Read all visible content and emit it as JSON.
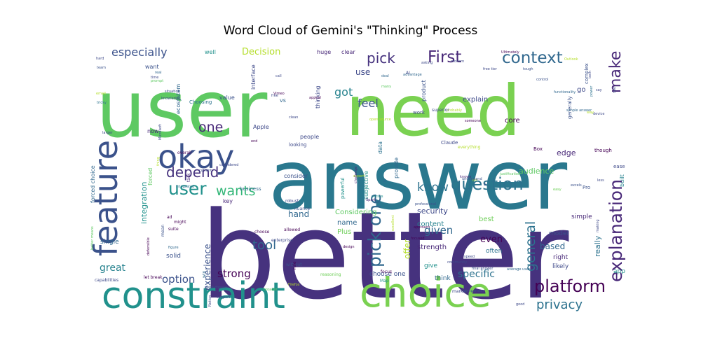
{
  "chart_data": {
    "type": "wordcloud",
    "title": "Word Cloud of Gemini's \"Thinking\" Process",
    "palette": [
      "#440154",
      "#482878",
      "#3e4989",
      "#31688e",
      "#26828e",
      "#1f9e89",
      "#35b779",
      "#6ece58",
      "#b5de2b",
      "#fde725"
    ],
    "words": [
      {
        "text": "better",
        "weight": 1.0,
        "color": "#46327e"
      },
      {
        "text": "answer",
        "weight": 0.9,
        "color": "#2a788e"
      },
      {
        "text": "user",
        "weight": 0.8,
        "color": "#5ec962"
      },
      {
        "text": "need",
        "weight": 0.8,
        "color": "#7ad151"
      },
      {
        "text": "choice",
        "weight": 0.56,
        "color": "#7ad151"
      },
      {
        "text": "constraint",
        "weight": 0.5,
        "color": "#21918c"
      },
      {
        "text": "feature",
        "weight": 0.5,
        "color": "#3b528b"
      },
      {
        "text": "okay",
        "weight": 0.44,
        "color": "#3b528b"
      },
      {
        "text": "user",
        "weight": 0.25,
        "color": "#21918c"
      },
      {
        "text": "pick one",
        "weight": 0.25,
        "color": "#31688e"
      },
      {
        "text": "explanation",
        "weight": 0.25,
        "color": "#482878"
      },
      {
        "text": "question",
        "weight": 0.24,
        "color": "#2c728e"
      },
      {
        "text": "platform",
        "weight": 0.24,
        "color": "#440154"
      },
      {
        "text": "context",
        "weight": 0.23,
        "color": "#31688e"
      },
      {
        "text": "First",
        "weight": 0.23,
        "color": "#482878"
      },
      {
        "text": "make",
        "weight": 0.22,
        "color": "#482878"
      },
      {
        "text": "depend",
        "weight": 0.2,
        "color": "#46327e"
      },
      {
        "text": "pick",
        "weight": 0.2,
        "color": "#46327e"
      },
      {
        "text": "wants",
        "weight": 0.19,
        "color": "#35b779"
      },
      {
        "text": "one",
        "weight": 0.19,
        "color": "#482878"
      },
      {
        "text": "general",
        "weight": 0.19,
        "color": "#2c728e"
      },
      {
        "text": "privacy",
        "weight": 0.18,
        "color": "#2c728e"
      },
      {
        "text": "tool",
        "weight": 0.18,
        "color": "#31688e"
      },
      {
        "text": "know",
        "weight": 0.17,
        "color": "#2c728e"
      },
      {
        "text": "especially",
        "weight": 0.16,
        "color": "#3b528b"
      },
      {
        "text": "got",
        "weight": 0.16,
        "color": "#26828e"
      },
      {
        "text": "feel",
        "weight": 0.16,
        "color": "#3b528b"
      },
      {
        "text": "given",
        "weight": 0.15,
        "color": "#31688e"
      },
      {
        "text": "strong",
        "weight": 0.15,
        "color": "#440154"
      },
      {
        "text": "option",
        "weight": 0.15,
        "color": "#3b528b"
      },
      {
        "text": "great",
        "weight": 0.14,
        "color": "#26828e"
      },
      {
        "text": "specific",
        "weight": 0.14,
        "color": "#2c728e"
      },
      {
        "text": "Decision",
        "weight": 0.13,
        "color": "#b5de2b"
      },
      {
        "text": "even",
        "weight": 0.13,
        "color": "#440154"
      },
      {
        "text": "use",
        "weight": 0.12,
        "color": "#3e4989"
      },
      {
        "text": "hand",
        "weight": 0.12,
        "color": "#31688e"
      },
      {
        "text": "based",
        "weight": 0.12,
        "color": "#31688e"
      },
      {
        "text": "experience",
        "weight": 0.12,
        "color": "#3b528b"
      },
      {
        "text": "offer",
        "weight": 0.11,
        "color": "#b5de2b"
      },
      {
        "text": "security",
        "weight": 0.11,
        "color": "#3e4989"
      },
      {
        "text": "integration",
        "weight": 0.11,
        "color": "#21918c"
      },
      {
        "text": "really",
        "weight": 0.11,
        "color": "#2c728e"
      },
      {
        "text": "edge",
        "weight": 0.11,
        "color": "#482878"
      },
      {
        "text": "audience",
        "weight": 0.11,
        "color": "#5ec962"
      },
      {
        "text": "explain",
        "weight": 0.1,
        "color": "#3e4989"
      },
      {
        "text": "core",
        "weight": 0.1,
        "color": "#440154"
      },
      {
        "text": "go",
        "weight": 0.1,
        "color": "#3e4989"
      },
      {
        "text": "Considering",
        "weight": 0.1,
        "color": "#5ec962"
      },
      {
        "text": "content",
        "weight": 0.1,
        "color": "#26828e"
      },
      {
        "text": "strength",
        "weight": 0.1,
        "color": "#482878"
      },
      {
        "text": "Plus",
        "weight": 0.1,
        "color": "#6ece58"
      },
      {
        "text": "name",
        "weight": 0.1,
        "color": "#31688e"
      },
      {
        "text": "best",
        "weight": 0.1,
        "color": "#6ece58"
      },
      {
        "text": "model",
        "weight": 0.09,
        "color": "#3b528b"
      },
      {
        "text": "simple",
        "weight": 0.09,
        "color": "#482878"
      },
      {
        "text": "right",
        "weight": 0.09,
        "color": "#482878"
      },
      {
        "text": "likely",
        "weight": 0.09,
        "color": "#3e4989"
      },
      {
        "text": "app",
        "weight": 0.09,
        "color": "#21918c"
      },
      {
        "text": "often",
        "weight": 0.09,
        "color": "#2c728e"
      },
      {
        "text": "think",
        "weight": 0.09,
        "color": "#31688e"
      },
      {
        "text": "give",
        "weight": 0.09,
        "color": "#21918c"
      },
      {
        "text": "choose one",
        "weight": 0.09,
        "color": "#3b528b"
      },
      {
        "text": "solid",
        "weight": 0.09,
        "color": "#3b528b"
      },
      {
        "text": "single",
        "weight": 0.09,
        "color": "#31688e"
      },
      {
        "text": "consider",
        "weight": 0.08,
        "color": "#3b528b"
      },
      {
        "text": "Apple",
        "weight": 0.08,
        "color": "#3e4989"
      },
      {
        "text": "thinking",
        "weight": 0.08,
        "color": "#3e4989"
      },
      {
        "text": "huge",
        "weight": 0.08,
        "color": "#482878"
      },
      {
        "text": "clear",
        "weight": 0.08,
        "color": "#482878"
      },
      {
        "text": "well",
        "weight": 0.08,
        "color": "#21918c"
      },
      {
        "text": "value",
        "weight": 0.07,
        "color": "#3b528b"
      },
      {
        "text": "people",
        "weight": 0.07,
        "color": "#3e4989"
      },
      {
        "text": "want",
        "weight": 0.07,
        "color": "#3b528b"
      },
      {
        "text": "forced",
        "weight": 0.07,
        "color": "#5ec962"
      },
      {
        "text": "now",
        "weight": 0.07,
        "color": "#482878"
      },
      {
        "text": "vs",
        "weight": 0.07,
        "color": "#31688e"
      },
      {
        "text": "built",
        "weight": 0.07,
        "color": "#26828e"
      },
      {
        "text": "key",
        "weight": 0.07,
        "color": "#482878"
      },
      {
        "text": "product",
        "weight": 0.07,
        "color": "#3b528b"
      },
      {
        "text": "ecosystem",
        "weight": 0.07,
        "color": "#31688e"
      },
      {
        "text": "interface",
        "weight": 0.07,
        "color": "#3e4989"
      },
      {
        "text": "forced choice",
        "weight": 0.07,
        "color": "#31688e"
      },
      {
        "text": "subjective",
        "weight": 0.07,
        "color": "#21918c"
      },
      {
        "text": "provide",
        "weight": 0.07,
        "color": "#31688e"
      },
      {
        "text": "data",
        "weight": 0.07,
        "color": "#2c728e"
      },
      {
        "text": "work",
        "weight": 0.06,
        "color": "#3e4989"
      },
      {
        "text": "powerful",
        "weight": 0.06,
        "color": "#21918c"
      },
      {
        "text": "quick",
        "weight": 0.06,
        "color": "#2c728e"
      },
      {
        "text": "looking",
        "weight": 0.06,
        "color": "#3e4989"
      },
      {
        "text": "business",
        "weight": 0.06,
        "color": "#31688e"
      },
      {
        "text": "Choosing",
        "weight": 0.06,
        "color": "#2c728e"
      },
      {
        "text": "complex",
        "weight": 0.06,
        "color": "#3b528b"
      },
      {
        "text": "generally",
        "weight": 0.06,
        "color": "#3b528b"
      },
      {
        "text": "though",
        "weight": 0.06,
        "color": "#440154"
      },
      {
        "text": "ease",
        "weight": 0.06,
        "color": "#3e4989"
      },
      {
        "text": "Pro",
        "weight": 0.06,
        "color": "#3b528b"
      },
      {
        "text": "Box",
        "weight": 0.06,
        "color": "#440154"
      },
      {
        "text": "Claude",
        "weight": 0.06,
        "color": "#3e4989"
      },
      {
        "text": "focus",
        "weight": 0.06,
        "color": "#440154"
      },
      {
        "text": "market",
        "weight": 0.06,
        "color": "#3e4989"
      },
      {
        "text": "reasoning",
        "weight": 0.06,
        "color": "#6ece58"
      },
      {
        "text": "let break",
        "weight": 0.06,
        "color": "#440154"
      },
      {
        "text": "capabilities",
        "weight": 0.05,
        "color": "#3e4989"
      },
      {
        "text": "win",
        "weight": 0.05,
        "color": "#31688e"
      },
      {
        "text": "without",
        "weight": 0.05,
        "color": "#3b528b"
      },
      {
        "text": "rule",
        "weight": 0.05,
        "color": "#440154"
      },
      {
        "text": "robust",
        "weight": 0.05,
        "color": "#3e4989"
      },
      {
        "text": "nuance",
        "weight": 0.05,
        "color": "#3b528b"
      },
      {
        "text": "allowed",
        "weight": 0.05,
        "color": "#440154"
      },
      {
        "text": "mean",
        "weight": 0.05,
        "color": "#3b528b"
      },
      {
        "text": "ad",
        "weight": 0.05,
        "color": "#440154"
      },
      {
        "text": "might",
        "weight": 0.05,
        "color": "#440154"
      },
      {
        "text": "choose",
        "weight": 0.05,
        "color": "#440154"
      },
      {
        "text": "enterprise",
        "weight": 0.05,
        "color": "#3e4989"
      },
      {
        "text": "suite",
        "weight": 0.05,
        "color": "#440154"
      },
      {
        "text": "overall",
        "weight": 0.05,
        "color": "#440154"
      },
      {
        "text": "task",
        "weight": 0.05,
        "color": "#482878"
      },
      {
        "text": "defensible",
        "weight": 0.05,
        "color": "#440154"
      },
      {
        "text": "better means",
        "weight": 0.05,
        "color": "#5ec962"
      },
      {
        "text": "integrated",
        "weight": 0.05,
        "color": "#2c728e"
      },
      {
        "text": "email",
        "weight": 0.05,
        "color": "#b5de2b"
      },
      {
        "text": "tricky",
        "weight": 0.05,
        "color": "#2c728e"
      },
      {
        "text": "hard",
        "weight": 0.05,
        "color": "#3e4989"
      },
      {
        "text": "team",
        "weight": 0.05,
        "color": "#3b528b"
      },
      {
        "text": "prompt",
        "weight": 0.05,
        "color": "#5ec962"
      },
      {
        "text": "time",
        "weight": 0.04,
        "color": "#3e4989"
      },
      {
        "text": "situation",
        "weight": 0.04,
        "color": "#3e4989"
      },
      {
        "text": "knowledge",
        "weight": 0.04,
        "color": "#3e4989"
      },
      {
        "text": "real",
        "weight": 0.04,
        "color": "#31688e"
      },
      {
        "text": "call",
        "weight": 0.04,
        "color": "#3e4989"
      },
      {
        "text": "Vimeo",
        "weight": 0.04,
        "color": "#440154"
      },
      {
        "text": "free",
        "weight": 0.04,
        "color": "#3e4989"
      },
      {
        "text": "many",
        "weight": 0.04,
        "color": "#5ec962"
      },
      {
        "text": "modern",
        "weight": 0.04,
        "color": "#3e4989"
      },
      {
        "text": "free tier",
        "weight": 0.04,
        "color": "#3e4989"
      },
      {
        "text": "Ultimately",
        "weight": 0.04,
        "color": "#440154"
      },
      {
        "text": "tough",
        "weight": 0.04,
        "color": "#3b528b"
      },
      {
        "text": "control",
        "weight": 0.04,
        "color": "#3b528b"
      },
      {
        "text": "functionality",
        "weight": 0.04,
        "color": "#31688e"
      },
      {
        "text": "deal",
        "weight": 0.04,
        "color": "#31688e"
      },
      {
        "text": "advantage",
        "weight": 0.04,
        "color": "#31688e"
      },
      {
        "text": "appeal",
        "weight": 0.04,
        "color": "#440154"
      },
      {
        "text": "clean",
        "weight": 0.04,
        "color": "#3e4989"
      },
      {
        "text": "end",
        "weight": 0.04,
        "color": "#440154"
      },
      {
        "text": "larger",
        "weight": 0.04,
        "color": "#3e4989"
      },
      {
        "text": "open source",
        "weight": 0.04,
        "color": "#b5de2b"
      },
      {
        "text": "someone",
        "weight": 0.04,
        "color": "#440154"
      },
      {
        "text": "simple answer",
        "weight": 0.04,
        "color": "#31688e"
      },
      {
        "text": "device",
        "weight": 0.04,
        "color": "#3e4989"
      },
      {
        "text": "power",
        "weight": 0.04,
        "color": "#2c728e"
      },
      {
        "text": "say",
        "weight": 0.04,
        "color": "#3e4989"
      },
      {
        "text": "two",
        "weight": 0.04,
        "color": "#3e4989"
      },
      {
        "text": "UI",
        "weight": 0.04,
        "color": "#31688e"
      },
      {
        "text": "expert",
        "weight": 0.04,
        "color": "#b5de2b"
      },
      {
        "text": "versus",
        "weight": 0.04,
        "color": "#21918c"
      },
      {
        "text": "Spark",
        "weight": 0.04,
        "color": "#482878"
      },
      {
        "text": "challenge",
        "weight": 0.04,
        "color": "#482878"
      },
      {
        "text": "known",
        "weight": 0.04,
        "color": "#482878"
      },
      {
        "text": "bit",
        "weight": 0.04,
        "color": "#b5de2b"
      },
      {
        "text": "easy",
        "weight": 0.04,
        "color": "#6ece58"
      },
      {
        "text": "less",
        "weight": 0.04,
        "color": "#3e4989"
      },
      {
        "text": "excels",
        "weight": 0.04,
        "color": "#3b528b"
      },
      {
        "text": "making",
        "weight": 0.04,
        "color": "#3e4989"
      },
      {
        "text": "justification",
        "weight": 0.04,
        "color": "#5ec962"
      },
      {
        "text": "understand",
        "weight": 0.04,
        "color": "#3b528b"
      },
      {
        "text": "professional",
        "weight": 0.04,
        "color": "#3b528b"
      },
      {
        "text": "focused",
        "weight": 0.04,
        "color": "#440154"
      },
      {
        "text": "approach",
        "weight": 0.04,
        "color": "#440154"
      },
      {
        "text": "design",
        "weight": 0.04,
        "color": "#440154"
      },
      {
        "text": "excellent",
        "weight": 0.04,
        "color": "#b5de2b"
      },
      {
        "text": "community",
        "weight": 0.04,
        "color": "#3e4989"
      },
      {
        "text": "final answer",
        "weight": 0.04,
        "color": "#3b528b"
      },
      {
        "text": "average user",
        "weight": 0.04,
        "color": "#31688e"
      },
      {
        "text": "comparison",
        "weight": 0.04,
        "color": "#3b528b"
      },
      {
        "text": "good",
        "weight": 0.04,
        "color": "#3e4989"
      },
      {
        "text": "speed",
        "weight": 0.04,
        "color": "#3e4989"
      },
      {
        "text": "must choose",
        "weight": 0.04,
        "color": "#3b528b"
      },
      {
        "text": "broader",
        "weight": 0.04,
        "color": "#5ec962"
      },
      {
        "text": "Firefox",
        "weight": 0.04,
        "color": "#b5de2b"
      },
      {
        "text": "Notion",
        "weight": 0.04,
        "color": "#3e4989"
      },
      {
        "text": "support",
        "weight": 0.04,
        "color": "#3e4989"
      },
      {
        "text": "current",
        "weight": 0.04,
        "color": "#3b528b"
      },
      {
        "text": "considered",
        "weight": 0.04,
        "color": "#3e4989"
      },
      {
        "text": "figure",
        "weight": 0.04,
        "color": "#31688e"
      },
      {
        "text": "thing",
        "weight": 0.04,
        "color": "#b5de2b"
      },
      {
        "text": "Microsoft",
        "weight": 0.04,
        "color": "#3e4989"
      },
      {
        "text": "Outlook",
        "weight": 0.04,
        "color": "#b5de2b"
      },
      {
        "text": "way",
        "weight": 0.04,
        "color": "#b5de2b"
      },
      {
        "text": "asking",
        "weight": 0.04,
        "color": "#3e4989"
      },
      {
        "text": "tech",
        "weight": 0.04,
        "color": "#3e4989"
      },
      {
        "text": "probably",
        "weight": 0.04,
        "color": "#b5de2b"
      },
      {
        "text": "Map",
        "weight": 0.04,
        "color": "#21918c"
      },
      {
        "text": "AI",
        "weight": 0.04,
        "color": "#3e4989"
      },
      {
        "text": "superior",
        "weight": 0.04,
        "color": "#3e4989"
      },
      {
        "text": "everything",
        "weight": 0.04,
        "color": "#b5de2b"
      },
      {
        "text": "s",
        "weight": 0.04,
        "color": "#3e4989"
      }
    ]
  }
}
